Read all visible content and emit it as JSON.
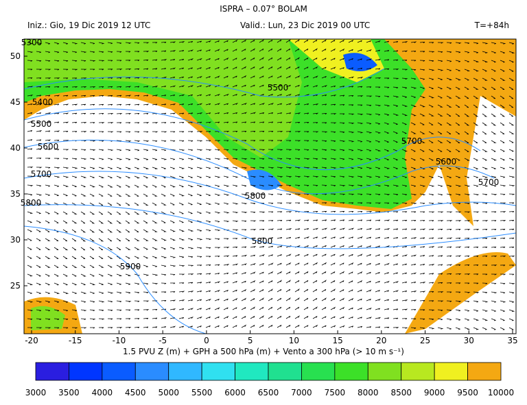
{
  "header": {
    "title": "ISPRA – 0.07° BOLAM",
    "init": "Iniz.: Gio, 19 Dic 2019  12 UTC",
    "valid": "Valid.: Lun, 23 Dic 2019  00 UTC",
    "lead": "T=+84h"
  },
  "map": {
    "lon_ticks": [
      -20,
      -15,
      -10,
      -5,
      0,
      5,
      10,
      15,
      20,
      25,
      30,
      35
    ],
    "lat_ticks": [
      25,
      30,
      35,
      40,
      45,
      50
    ],
    "contour_labels": [
      "5300",
      "5400",
      "5500",
      "5600",
      "5700",
      "5800",
      "5900",
      "5500",
      "5600",
      "5700",
      "5800",
      "5800",
      "5700"
    ]
  },
  "caption": "1.5 PVU Z (m) + GPH a 500 hPa (m) + Vento a 300 hPa (> 10 m s⁻¹)",
  "colorbar": {
    "labels": [
      3000,
      3500,
      4000,
      4500,
      5000,
      5500,
      6000,
      6500,
      7000,
      7500,
      8000,
      8500,
      9000,
      9500,
      10000
    ],
    "colors": [
      "#2a1ee0",
      "#0036ff",
      "#0a5cff",
      "#2a8cff",
      "#30b8ff",
      "#30e0f0",
      "#20e8c0",
      "#20e090",
      "#28e050",
      "#3ce028",
      "#80e020",
      "#b8e820",
      "#f0f020",
      "#f4a812"
    ]
  }
}
